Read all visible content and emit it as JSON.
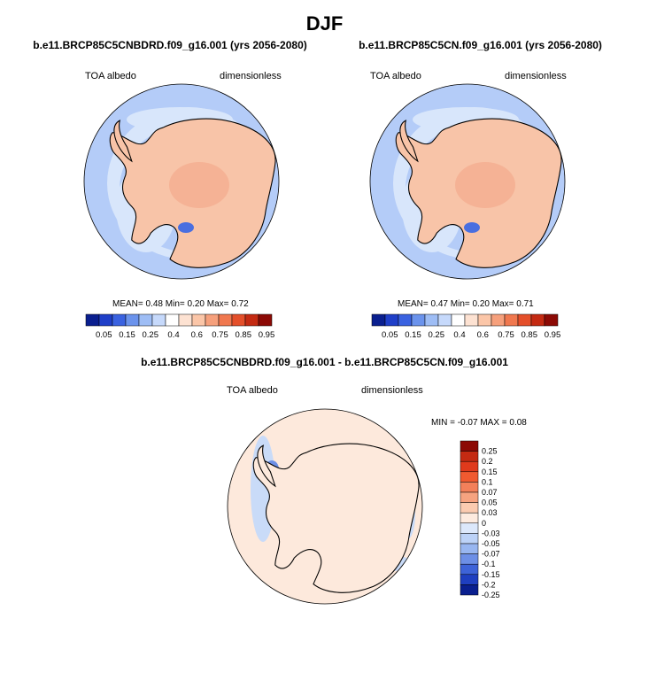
{
  "figure_title": "DJF",
  "panels": [
    {
      "title": "b.e11.BRCP85C5CNBDRD.f09_g16.001 (yrs 2056-2080)",
      "variable": "TOA albedo",
      "units": "dimensionless",
      "stats": {
        "mean_label": "MEAN=",
        "mean": "0.48",
        "min_label": "Min=",
        "min": "0.20",
        "max_label": "Max=",
        "max": "0.72"
      }
    },
    {
      "title": "b.e11.BRCP85C5CN.f09_g16.001 (yrs 2056-2080)",
      "variable": "TOA albedo",
      "units": "dimensionless",
      "stats": {
        "mean_label": "MEAN=",
        "mean": "0.47",
        "min_label": "Min=",
        "min": "0.20",
        "max_label": "Max=",
        "max": "0.71"
      }
    },
    {
      "title": "b.e11.BRCP85C5CNBDRD.f09_g16.001 - b.e11.BRCP85C5CN.f09_g16.001",
      "variable": "TOA albedo",
      "units": "dimensionless",
      "stats": {
        "min_label": "MIN =",
        "min": "-0.07",
        "max_label": "MAX =",
        "max": "0.08"
      }
    }
  ],
  "colorbar_abs": {
    "ticks": [
      "0.05",
      "0.15",
      "0.25",
      "0.4",
      "0.6",
      "0.75",
      "0.85",
      "0.95"
    ],
    "colors": [
      "#0a1f8f",
      "#1f3fc8",
      "#3a62e0",
      "#6b93ec",
      "#9ebdf5",
      "#c6d9fb",
      "#ffffff",
      "#fde2d2",
      "#fbc6a8",
      "#f6a07c",
      "#f0784f",
      "#e44f2a",
      "#c42a12",
      "#8c0a05"
    ]
  },
  "colorbar_diff": {
    "ticks": [
      "0.25",
      "0.2",
      "0.15",
      "0.1",
      "0.07",
      "0.05",
      "0.03",
      "0",
      "-0.03",
      "-0.05",
      "-0.07",
      "-0.1",
      "-0.15",
      "-0.2",
      "-0.25"
    ],
    "colors": [
      "#8c0a05",
      "#c42a12",
      "#e03a1c",
      "#f05a30",
      "#f3805a",
      "#f6a380",
      "#fbcbb0",
      "#fdebdf",
      "#dce8fb",
      "#bcd2f7",
      "#98b6f0",
      "#6d8fe6",
      "#3e63d8",
      "#1f3fc0",
      "#0a1f8f"
    ]
  },
  "map_colors": {
    "ocean_low": "#b4ccf8",
    "ocean_ice": "#d8e6fb",
    "ice_sheet": "#f8c4a8",
    "ice_high": "#f4ae90",
    "diff_bg": "#fde9dc",
    "diff_neg": "#c9dbf8",
    "diff_pos": "#f6a98a"
  }
}
